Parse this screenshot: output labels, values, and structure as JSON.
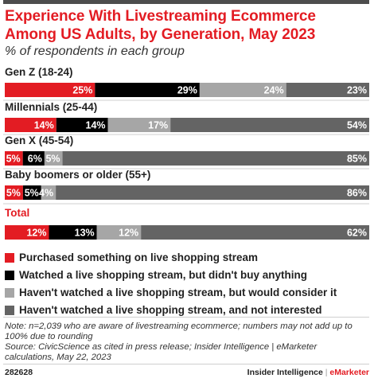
{
  "header": {
    "title": "Experience With Livestreaming Ecommerce Among US Adults, by Generation, May 2023",
    "subtitle": "% of respondents in each group"
  },
  "chart_data": {
    "type": "bar",
    "orientation": "horizontal",
    "stacked": true,
    "unit": "%",
    "title": "Experience With Livestreaming Ecommerce Among US Adults, by Generation, May 2023",
    "subtitle": "% of respondents in each group",
    "categories": [
      "Gen Z (18-24)",
      "Millennials (25-44)",
      "Gen X (45-54)",
      "Baby boomers or older (55+)",
      "Total"
    ],
    "series": [
      {
        "name": "Purchased something on live shopping stream",
        "color": "#e31c23",
        "values": [
          25,
          14,
          5,
          5,
          12
        ]
      },
      {
        "name": "Watched a live shopping stream, but didn't buy anything",
        "color": "#000000",
        "values": [
          29,
          14,
          6,
          5,
          13
        ]
      },
      {
        "name": "Haven't watched a live shopping stream, but would consider it",
        "color": "#a6a6a6",
        "values": [
          24,
          17,
          5,
          4,
          12
        ]
      },
      {
        "name": "Haven't watched a live shopping stream, and not interested",
        "color": "#646464",
        "values": [
          23,
          54,
          85,
          86,
          62
        ]
      }
    ],
    "highlight_category": "Total",
    "legend_position": "bottom"
  },
  "note": "Note: n=2,039 who are aware of livestreaming ecommerce; numbers may not add up to 100% due to rounding",
  "source": "Source: CivicScience as cited in press release; Insider Intelligence | eMarketer calculations, May 22, 2023",
  "footer": {
    "chart_id": "282628",
    "brand_left": "Insider Intelligence",
    "brand_sep": "|",
    "brand_right": "eMarketer"
  }
}
